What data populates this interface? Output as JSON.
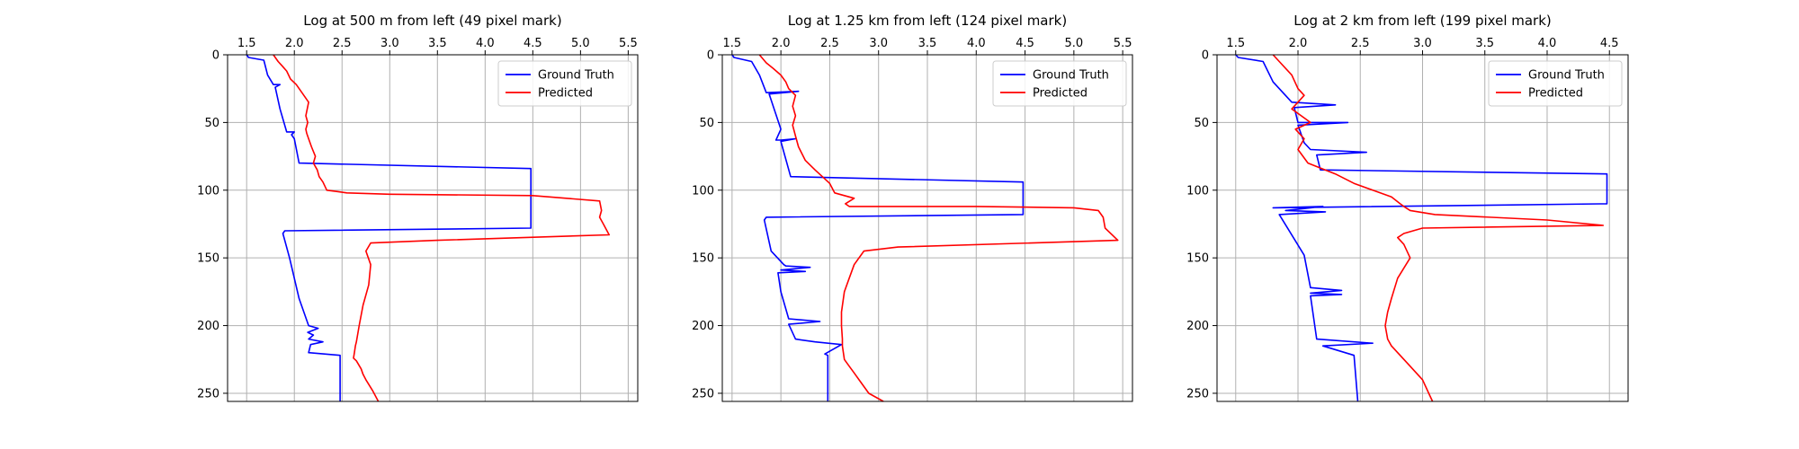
{
  "colors": {
    "ground_truth": "#0000ff",
    "predicted": "#ff0000",
    "grid": "#b0b0b0"
  },
  "chart_data": [
    {
      "type": "line",
      "title": "Log at 500 m from left (49 pixel mark)",
      "xlabel": "",
      "ylabel": "",
      "x_axis_position": "top",
      "y_inverted": true,
      "xlim": [
        1.3,
        5.6
      ],
      "ylim": [
        256,
        0
      ],
      "xticks": [
        1.5,
        2.0,
        2.5,
        3.0,
        3.5,
        4.0,
        4.5,
        5.0,
        5.5
      ],
      "xtick_labels": [
        "1.5",
        "2.0",
        "2.5",
        "3.0",
        "3.5",
        "4.0",
        "4.5",
        "5.0",
        "5.5"
      ],
      "yticks": [
        0,
        50,
        100,
        150,
        200,
        250
      ],
      "ytick_labels": [
        "0",
        "50",
        "100",
        "150",
        "200",
        "250"
      ],
      "grid": true,
      "legend": "top-right",
      "series": [
        {
          "name": "Ground Truth",
          "color": "#0000ff",
          "x": [
            1.5,
            1.52,
            1.68,
            1.72,
            1.78,
            1.85,
            1.8,
            1.85,
            1.92,
            2.0,
            1.97,
            2.0,
            2.05,
            4.48,
            4.48,
            4.48,
            1.9,
            1.88,
            1.95,
            2.05,
            2.15,
            2.15,
            2.25,
            2.14,
            2.2,
            2.15,
            2.3,
            2.17,
            2.15,
            2.48,
            2.48
          ],
          "y": [
            0,
            2,
            4,
            15,
            22,
            22,
            24,
            40,
            57,
            57,
            59,
            62,
            80,
            84,
            110,
            128,
            130,
            132,
            150,
            180,
            200,
            200,
            202,
            205,
            207,
            210,
            212,
            214,
            220,
            222,
            256
          ]
        },
        {
          "name": "Predicted",
          "color": "#ff0000",
          "x": [
            1.78,
            1.83,
            1.87,
            1.92,
            1.96,
            2.02,
            2.08,
            2.15,
            2.12,
            2.14,
            2.12,
            2.13,
            2.15,
            2.18,
            2.22,
            2.2,
            2.24,
            2.26,
            2.3,
            2.32,
            2.34,
            2.45,
            2.55,
            3.0,
            4.5,
            5.2,
            5.22,
            5.2,
            5.24,
            5.3,
            3.5,
            2.8,
            2.75,
            2.8,
            2.78,
            2.72,
            2.68,
            2.65,
            2.64,
            2.63,
            2.62,
            2.65,
            2.7,
            2.72,
            2.75,
            2.82,
            2.88
          ],
          "y": [
            0,
            5,
            8,
            12,
            18,
            22,
            28,
            35,
            45,
            50,
            55,
            58,
            62,
            68,
            75,
            80,
            85,
            90,
            94,
            97,
            100,
            101,
            102,
            103,
            104,
            108,
            115,
            120,
            125,
            133,
            137,
            139,
            145,
            155,
            170,
            185,
            200,
            212,
            215,
            220,
            224,
            226,
            232,
            236,
            240,
            248,
            256
          ]
        }
      ]
    },
    {
      "type": "line",
      "title": "Log at 1.25 km from left (124 pixel mark)",
      "xlabel": "",
      "ylabel": "",
      "x_axis_position": "top",
      "y_inverted": true,
      "xlim": [
        1.4,
        5.6
      ],
      "ylim": [
        256,
        0
      ],
      "xticks": [
        1.5,
        2.0,
        2.5,
        3.0,
        3.5,
        4.0,
        4.5,
        5.0,
        5.5
      ],
      "xtick_labels": [
        "1.5",
        "2.0",
        "2.5",
        "3.0",
        "3.5",
        "4.0",
        "4.5",
        "5.0",
        "5.5"
      ],
      "yticks": [
        0,
        50,
        100,
        150,
        200,
        250
      ],
      "ytick_labels": [
        "0",
        "50",
        "100",
        "150",
        "200",
        "250"
      ],
      "grid": true,
      "legend": "top-right",
      "series": [
        {
          "name": "Ground Truth",
          "color": "#0000ff",
          "x": [
            1.5,
            1.52,
            1.7,
            1.78,
            1.85,
            2.18,
            1.88,
            2.0,
            1.95,
            2.0,
            2.15,
            2.0,
            2.1,
            4.48,
            4.48,
            4.48,
            1.85,
            1.83,
            1.9,
            2.03,
            2.05,
            2.3,
            2.0,
            2.25,
            1.97,
            2.0,
            2.08,
            2.4,
            2.08,
            2.15,
            2.35,
            2.62,
            2.45,
            2.48,
            2.48
          ],
          "y": [
            0,
            2,
            5,
            15,
            28,
            27,
            29,
            55,
            63,
            63,
            62,
            64,
            90,
            94,
            110,
            118,
            120,
            122,
            145,
            155,
            156,
            157,
            159,
            160,
            161,
            175,
            195,
            197,
            199,
            210,
            212,
            214,
            221,
            222,
            256
          ]
        },
        {
          "name": "Predicted",
          "color": "#ff0000",
          "x": [
            1.78,
            1.85,
            1.92,
            2.0,
            2.05,
            2.08,
            2.15,
            2.12,
            2.15,
            2.12,
            2.15,
            2.18,
            2.25,
            2.35,
            2.5,
            2.55,
            2.75,
            2.66,
            2.7,
            3.0,
            4.0,
            5.0,
            5.25,
            5.3,
            5.32,
            5.45,
            3.2,
            2.85,
            2.75,
            2.7,
            2.65,
            2.62,
            2.62,
            2.63,
            2.63,
            2.65,
            2.7,
            2.75,
            2.8,
            2.85,
            2.9,
            3.05
          ],
          "y": [
            0,
            6,
            10,
            15,
            20,
            25,
            30,
            38,
            45,
            52,
            60,
            68,
            78,
            85,
            95,
            102,
            106,
            110,
            112,
            112,
            112,
            113,
            115,
            120,
            128,
            137,
            142,
            145,
            155,
            165,
            175,
            190,
            200,
            210,
            215,
            225,
            230,
            235,
            240,
            245,
            250,
            256
          ]
        }
      ]
    },
    {
      "type": "line",
      "title": "Log at 2 km from left (199 pixel mark)",
      "xlabel": "",
      "ylabel": "",
      "x_axis_position": "top",
      "y_inverted": true,
      "xlim": [
        1.35,
        4.65
      ],
      "ylim": [
        256,
        0
      ],
      "xticks": [
        1.5,
        2.0,
        2.5,
        3.0,
        3.5,
        4.0,
        4.5
      ],
      "xtick_labels": [
        "1.5",
        "2.0",
        "2.5",
        "3.0",
        "3.5",
        "4.0",
        "4.5"
      ],
      "yticks": [
        0,
        50,
        100,
        150,
        200,
        250
      ],
      "ytick_labels": [
        "0",
        "50",
        "100",
        "150",
        "200",
        "250"
      ],
      "grid": true,
      "legend": "top-right",
      "series": [
        {
          "name": "Ground Truth",
          "color": "#0000ff",
          "x": [
            1.5,
            1.52,
            1.72,
            1.8,
            1.95,
            2.3,
            1.97,
            2.0,
            2.4,
            2.0,
            2.05,
            2.1,
            2.55,
            2.15,
            2.18,
            4.48,
            4.48,
            1.8,
            2.2,
            1.9,
            2.22,
            1.85,
            2.05,
            2.1,
            2.35,
            2.1,
            2.35,
            2.1,
            2.15,
            2.6,
            2.2,
            2.45,
            2.48
          ],
          "y": [
            0,
            2,
            5,
            20,
            35,
            37,
            39,
            50,
            50,
            52,
            65,
            70,
            72,
            74,
            85,
            88,
            110,
            113,
            112,
            115,
            116,
            118,
            148,
            172,
            174,
            176,
            177,
            178,
            210,
            213,
            215,
            222,
            256
          ]
        },
        {
          "name": "Predicted",
          "color": "#ff0000",
          "x": [
            1.8,
            1.85,
            1.95,
            2.0,
            2.05,
            1.95,
            2.1,
            1.98,
            2.05,
            2.0,
            2.08,
            2.3,
            2.45,
            2.6,
            2.75,
            2.82,
            2.85,
            2.9,
            3.1,
            4.0,
            4.45,
            3.0,
            2.85,
            2.8,
            2.85,
            2.9,
            2.8,
            2.75,
            2.72,
            2.7,
            2.72,
            2.75,
            2.8,
            2.9,
            3.0,
            3.05,
            3.08
          ],
          "y": [
            0,
            5,
            15,
            25,
            30,
            40,
            50,
            55,
            62,
            70,
            80,
            88,
            95,
            100,
            105,
            110,
            112,
            115,
            118,
            122,
            126,
            128,
            132,
            135,
            140,
            150,
            165,
            180,
            190,
            200,
            210,
            215,
            220,
            230,
            240,
            250,
            256
          ]
        }
      ]
    }
  ]
}
